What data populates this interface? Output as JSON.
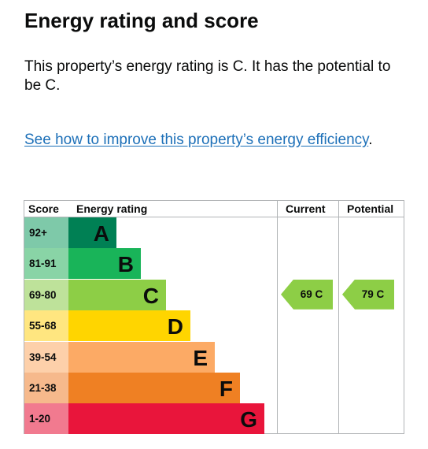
{
  "heading": "Energy rating and score",
  "intro": "This property’s energy rating is C. It has the potential to be C.",
  "improve_link": "See how to improve this property’s energy efficiency",
  "improve_link_suffix": ".",
  "table": {
    "headers": {
      "score": "Score",
      "rating": "Energy rating",
      "current": "Current",
      "potential": "Potential"
    },
    "bands": [
      {
        "range": "92+",
        "letter": "A",
        "color": "#008054",
        "score_bg": "#7ec9a9"
      },
      {
        "range": "81-91",
        "letter": "B",
        "color": "#19b459",
        "score_bg": "#89d4a6"
      },
      {
        "range": "69-80",
        "letter": "C",
        "color": "#8dce46",
        "score_bg": "#bee29a"
      },
      {
        "range": "55-68",
        "letter": "D",
        "color": "#ffd500",
        "score_bg": "#ffe680"
      },
      {
        "range": "39-54",
        "letter": "E",
        "color": "#fcaa65",
        "score_bg": "#fdd0aa"
      },
      {
        "range": "21-38",
        "letter": "F",
        "color": "#ef8023",
        "score_bg": "#f6b98c"
      },
      {
        "range": "1-20",
        "letter": "G",
        "color": "#e9153b",
        "score_bg": "#f17a8f"
      }
    ],
    "current": {
      "label": "69  C",
      "band_index": 2,
      "color": "#8dce46"
    },
    "potential": {
      "label": "79  C",
      "band_index": 2,
      "color": "#8dce46"
    }
  }
}
